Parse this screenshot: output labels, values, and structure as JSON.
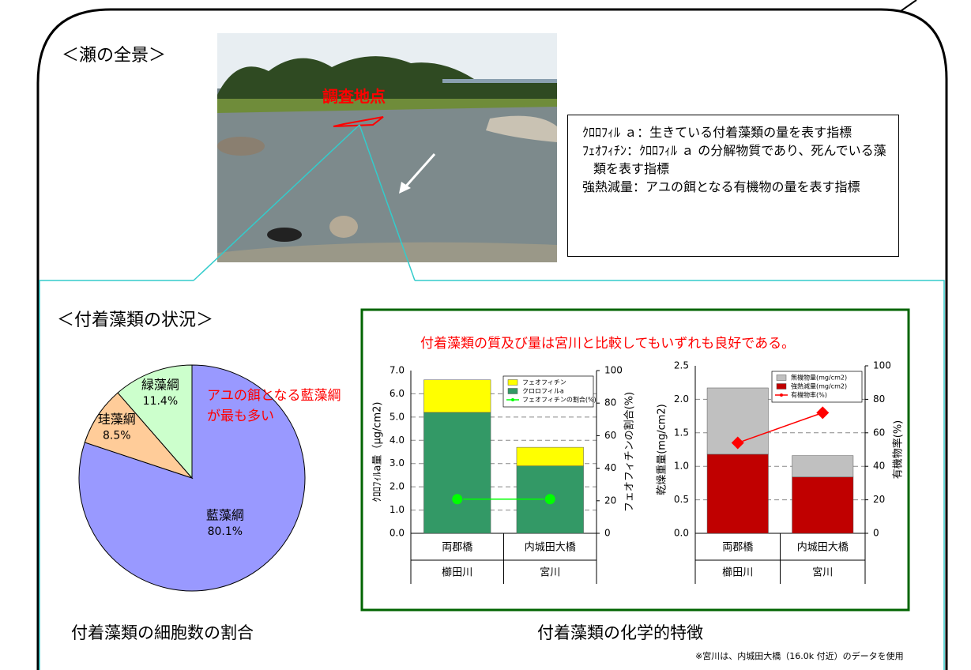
{
  "panorama_title": "＜瀬の全景＞",
  "photo_label": "調査地点",
  "notes": [
    {
      "term": "ｸﾛﾛﾌｨﾙ ａ",
      "desc": "：生きている付着藻類の量を表す指標"
    },
    {
      "term": "ﾌｪｵﾌｨﾁﾝ",
      "desc": "：ｸﾛﾛﾌｨﾙ ａ の分解物質であり、死んでいる藻類を表す指標"
    },
    {
      "term": "強熱減量",
      "desc": "：アユの餌となる有機物の量を表す指標"
    }
  ],
  "status_title": "＜付着藻類の状況＞",
  "chemical_heading": "付着藻類の質及び量は宮川と比較してもいずれも良好である。",
  "chemical_caption": "付着藻類の化学的特徴",
  "note": "※宮川は、内城田大橋（16.0k 付近）のデータを使用",
  "chart_data": [
    {
      "type": "pie",
      "title": "付着藻類の細胞数の割合",
      "annotation": "アユの餌となる藍藻綱が最も多い",
      "categories": [
        "藍藻綱",
        "珪藻綱",
        "緑藻綱"
      ],
      "values": [
        80.1,
        8.5,
        11.4
      ],
      "value_labels": [
        "80.1%",
        "8.5%",
        "11.4%"
      ],
      "colors": [
        "#9999ff",
        "#ffcc99",
        "#ccffcc"
      ]
    },
    {
      "type": "stacked_bar",
      "categories": [
        "両郡橋",
        "内城田大橋"
      ],
      "groups": [
        "櫛田川",
        "宮川"
      ],
      "ylabel": "ｸﾛﾛﾌｨﾙa量（μg/cm2)",
      "y2label": "フェオフィチンの割合(%)",
      "ylim": [
        0,
        7
      ],
      "yticks": [
        {
          "value": 0,
          "label": "0.0"
        },
        {
          "value": 1,
          "label": "1.0"
        },
        {
          "value": 2,
          "label": "2.0"
        },
        {
          "value": 3,
          "label": "3.0"
        },
        {
          "value": 4,
          "label": "4.0"
        },
        {
          "value": 5,
          "label": "5.0"
        },
        {
          "value": 6,
          "label": "6.0"
        },
        {
          "value": 7,
          "label": "7.0"
        }
      ],
      "y2lim": [
        0,
        100
      ],
      "y2ticks": [
        0,
        20,
        40,
        60,
        80,
        100
      ],
      "grid": true,
      "series": [
        {
          "name": "クロロフィルa",
          "color": "#339966",
          "values": [
            5.2,
            2.9
          ]
        },
        {
          "name": "フェオフィチン",
          "color": "#ffff00",
          "values": [
            1.4,
            0.8
          ]
        },
        {
          "name": "フェオフィチンの割合(%)",
          "type": "line",
          "axis": "y2",
          "color": "#00ff00",
          "values": [
            21,
            21
          ]
        }
      ]
    },
    {
      "type": "stacked_bar",
      "categories": [
        "両郡橋",
        "内城田大橋"
      ],
      "groups": [
        "櫛田川",
        "宮川"
      ],
      "ylabel": "乾燥重量(mg/cm2)",
      "y2label": "有機物率(%)",
      "ylim": [
        0,
        2.5
      ],
      "yticks": [
        {
          "value": 0,
          "label": "0.0"
        },
        {
          "value": 0.5,
          "label": "0.5"
        },
        {
          "value": 1,
          "label": "1.0"
        },
        {
          "value": 1.5,
          "label": "1.5"
        },
        {
          "value": 2,
          "label": "2.0"
        },
        {
          "value": 2.5,
          "label": "2.5"
        }
      ],
      "y2lim": [
        0,
        100
      ],
      "y2ticks": [
        0,
        20,
        40,
        60,
        80,
        100
      ],
      "grid": true,
      "series": [
        {
          "name": "強熱減量(mg/cm2)",
          "color": "#c00000",
          "values": [
            1.18,
            0.84
          ]
        },
        {
          "name": "無機物量(mg/cm2)",
          "color": "#c0c0c0",
          "values": [
            0.99,
            0.32
          ]
        },
        {
          "name": "有機物率(%)",
          "type": "line",
          "axis": "y2",
          "color": "#ff0000",
          "values": [
            54,
            72
          ]
        }
      ]
    }
  ]
}
